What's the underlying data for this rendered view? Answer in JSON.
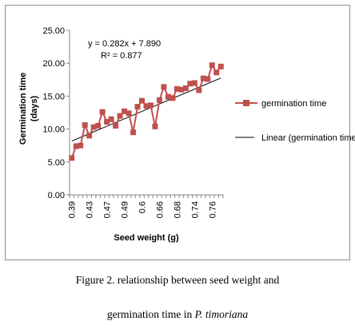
{
  "chart_data": {
    "type": "line",
    "ylabel_line1": "Germination time",
    "ylabel_line2": "(days)",
    "xlabel": "Seed weight (g)",
    "ylim": [
      0,
      25
    ],
    "y_ticks": [
      "0.00",
      "5.00",
      "10.00",
      "15.00",
      "20.00",
      "25.00"
    ],
    "x_tick_labels": [
      "0.39",
      "0.43",
      "0.47",
      "0.49",
      "0.6",
      "0.66",
      "0.68",
      "0.74",
      "0.76"
    ],
    "series": [
      {
        "name": "germination time",
        "color": "#c0504d",
        "values": [
          5.6,
          7.4,
          7.5,
          10.6,
          9.0,
          10.3,
          10.5,
          12.6,
          11.1,
          11.5,
          10.5,
          12.0,
          12.7,
          12.4,
          9.5,
          13.4,
          14.3,
          13.5,
          13.6,
          10.4,
          14.4,
          16.4,
          14.9,
          14.7,
          16.1,
          16.0,
          16.2,
          16.9,
          17.0,
          15.9,
          17.7,
          17.6,
          19.7,
          18.6,
          19.5
        ]
      }
    ],
    "trendline": {
      "name": "Linear (germination time)",
      "color": "#000000",
      "slope": 0.282,
      "intercept": 7.89,
      "equation": "y = 0.282x + 7.890",
      "r_squared": "R² = 0.877"
    },
    "legend_position": "right",
    "grid": false
  },
  "caption": {
    "line1": "Figure 2. relationship between seed weight and",
    "line2_prefix": "germination time in ",
    "line2_species": "P. timoriana"
  }
}
